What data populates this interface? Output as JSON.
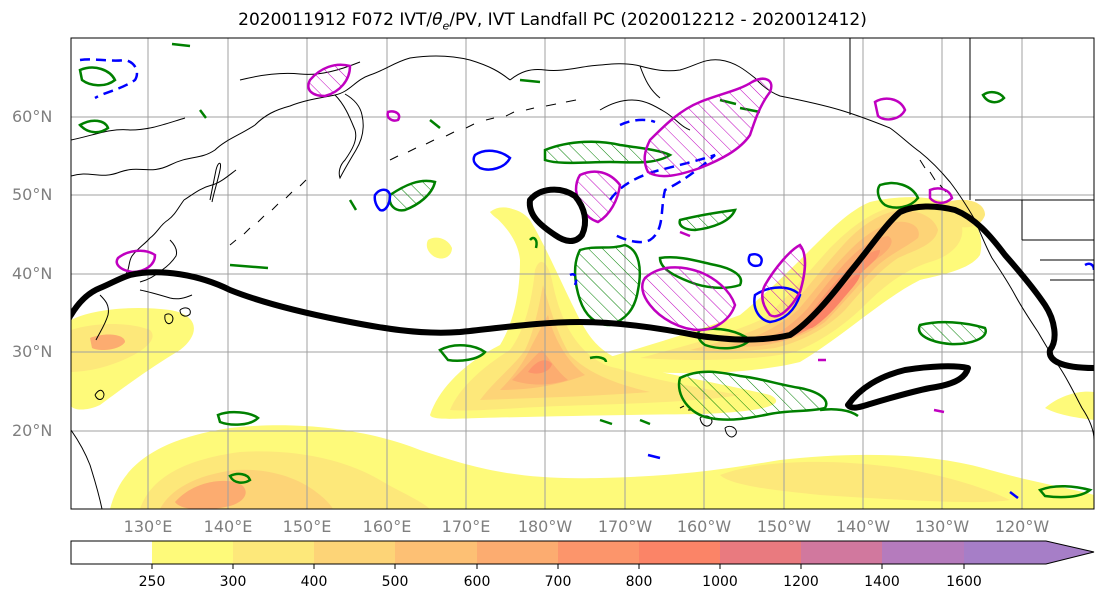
{
  "title": {
    "prefix": "2020011912 F072 IVT/",
    "theta": "θ",
    "theta_sub": "e",
    "suffix": "/PV, IVT Landfall PC (2020012212 - 2020012412)"
  },
  "lat_labels": [
    "60°N",
    "50°N",
    "40°N",
    "30°N",
    "20°N"
  ],
  "lon_labels": [
    "130°E",
    "140°E",
    "150°E",
    "160°E",
    "170°E",
    "180°W",
    "170°W",
    "160°W",
    "150°W",
    "140°W",
    "130°W",
    "120°W"
  ],
  "colorbar": {
    "ticks": [
      "250",
      "300",
      "400",
      "500",
      "600",
      "700",
      "800",
      "1000",
      "1200",
      "1400",
      "1600"
    ],
    "colors": [
      "#ffffff",
      "#fefa7a",
      "#fde87a",
      "#fdd477",
      "#fdc074",
      "#fcac70",
      "#fc956b",
      "#fb8467",
      "#e97a7f",
      "#d1789e",
      "#b57bbd",
      "#a67ec7"
    ]
  },
  "legend_colors": {
    "trajectory": "#000000",
    "pv_positive": "#008000",
    "pv_negative": "#0000ff",
    "theta_e": "#c000c0"
  }
}
